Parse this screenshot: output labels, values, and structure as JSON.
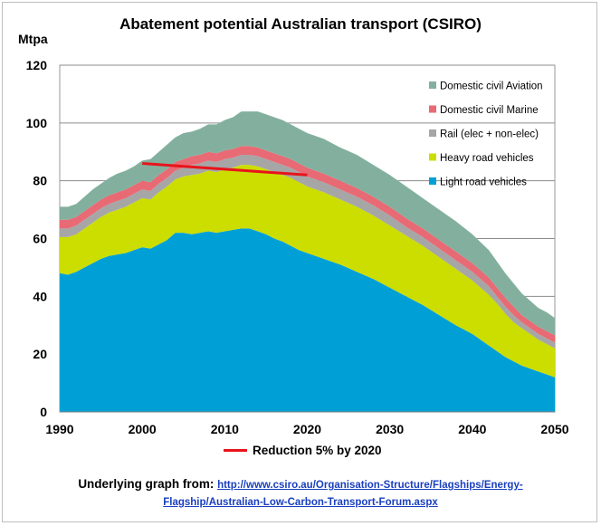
{
  "chart_data": {
    "type": "area",
    "title": "Abatement potential Australian transport (CSIRO)",
    "ylabel": "Mtpa",
    "xlabel": "",
    "xlim": [
      1990,
      2050
    ],
    "ylim": [
      0,
      120
    ],
    "x_ticks": [
      1990,
      2000,
      2010,
      2020,
      2030,
      2040,
      2050
    ],
    "y_ticks": [
      0,
      20,
      40,
      60,
      80,
      100,
      120
    ],
    "grid": "horizontal",
    "stacked": true,
    "legend_position": "top-right",
    "x": [
      1990,
      1991,
      1992,
      1993,
      1994,
      1995,
      1996,
      1997,
      1998,
      1999,
      2000,
      2001,
      2002,
      2003,
      2004,
      2005,
      2006,
      2007,
      2008,
      2009,
      2010,
      2011,
      2012,
      2013,
      2014,
      2015,
      2016,
      2017,
      2018,
      2019,
      2020,
      2022,
      2024,
      2026,
      2028,
      2030,
      2032,
      2034,
      2036,
      2038,
      2040,
      2042,
      2043,
      2044,
      2045,
      2046,
      2047,
      2048,
      2049,
      2050
    ],
    "series": [
      {
        "name": "Light road vehicles",
        "color": "#00a0d6",
        "values": [
          48,
          47.5,
          48.5,
          50,
          51.5,
          53,
          54,
          54.5,
          55,
          56,
          57,
          56.5,
          58,
          59.5,
          62,
          62,
          61.5,
          62,
          62.5,
          62,
          62.5,
          63,
          63.5,
          63.5,
          62.5,
          61.5,
          60,
          59,
          57.5,
          56,
          55,
          53,
          51,
          48.5,
          46,
          43,
          40,
          37,
          33.5,
          30,
          27,
          23,
          21,
          19,
          17.5,
          16,
          15,
          14,
          13,
          12
        ]
      },
      {
        "name": "Heavy road vehicles",
        "color": "#ccdd00",
        "values": [
          12.5,
          13,
          13,
          13.5,
          14,
          14.5,
          15,
          15.5,
          16,
          16.5,
          17,
          17,
          18,
          18.5,
          18.5,
          19.5,
          20.5,
          20.5,
          21,
          21,
          21.5,
          21.5,
          22,
          22,
          22.5,
          22.5,
          23,
          23,
          23.5,
          23.5,
          23,
          23,
          22.5,
          22.5,
          22,
          21.5,
          21,
          20.5,
          20,
          19.5,
          18.5,
          17.5,
          16.5,
          15,
          13.5,
          13,
          12,
          11,
          10.5,
          10
        ]
      },
      {
        "name": "Rail (elec + non-elec)",
        "color": "#a6a6a6",
        "values": [
          3,
          3,
          3,
          3,
          3,
          3,
          3,
          3,
          3,
          3,
          3,
          3,
          3,
          3,
          3,
          3,
          3.5,
          3.5,
          3.5,
          3.5,
          3.5,
          3.5,
          3.5,
          3.5,
          3.5,
          3.5,
          3.5,
          3.5,
          3.5,
          3.5,
          3.5,
          3.5,
          3.5,
          3.5,
          3.5,
          3.5,
          3,
          3,
          3,
          3,
          3,
          3,
          2.5,
          2.5,
          2.5,
          2,
          2,
          2,
          2,
          2
        ]
      },
      {
        "name": "Domestic civil Marine",
        "color": "#e86a74",
        "values": [
          3,
          3,
          3,
          3,
          3,
          3,
          3,
          3,
          3,
          3,
          3,
          3,
          3,
          3,
          3,
          3,
          3,
          3,
          3,
          3,
          3,
          3,
          3,
          3,
          3,
          3,
          3,
          3,
          3,
          3,
          3,
          3,
          3,
          3,
          3,
          3,
          3,
          3,
          3,
          3,
          3,
          3,
          3,
          3,
          3,
          2.5,
          2.5,
          2.5,
          2.5,
          2.5
        ]
      },
      {
        "name": "Domestic civil Aviation",
        "color": "#83b09e",
        "values": [
          4.5,
          4.5,
          4.5,
          5,
          5.5,
          5.5,
          6,
          6.5,
          6.5,
          6.5,
          7,
          8,
          8,
          8.5,
          8.5,
          9,
          8.5,
          9,
          9.5,
          10,
          10.5,
          11,
          12,
          12,
          12.5,
          12.5,
          12.5,
          12.5,
          12,
          12,
          12,
          12,
          11.5,
          11.5,
          11,
          11,
          11,
          10.5,
          10.5,
          10.5,
          10,
          9.5,
          9,
          8.5,
          8,
          7.5,
          7,
          6.5,
          6.5,
          6
        ]
      }
    ],
    "target_line": {
      "name": "Reduction 5% by 2020",
      "color": "#e8141b",
      "x": [
        2000,
        2005,
        2010,
        2015,
        2020
      ],
      "values": [
        86,
        85,
        84,
        83,
        82
      ]
    }
  },
  "footer": {
    "prefix": "Underlying graph from: ",
    "link_line1": "http://www.csiro.au/Organisation-Structure/Flagships/Energy-",
    "link_line2": "Flagship/Australian-Low-Carbon-Transport-Forum.aspx"
  }
}
